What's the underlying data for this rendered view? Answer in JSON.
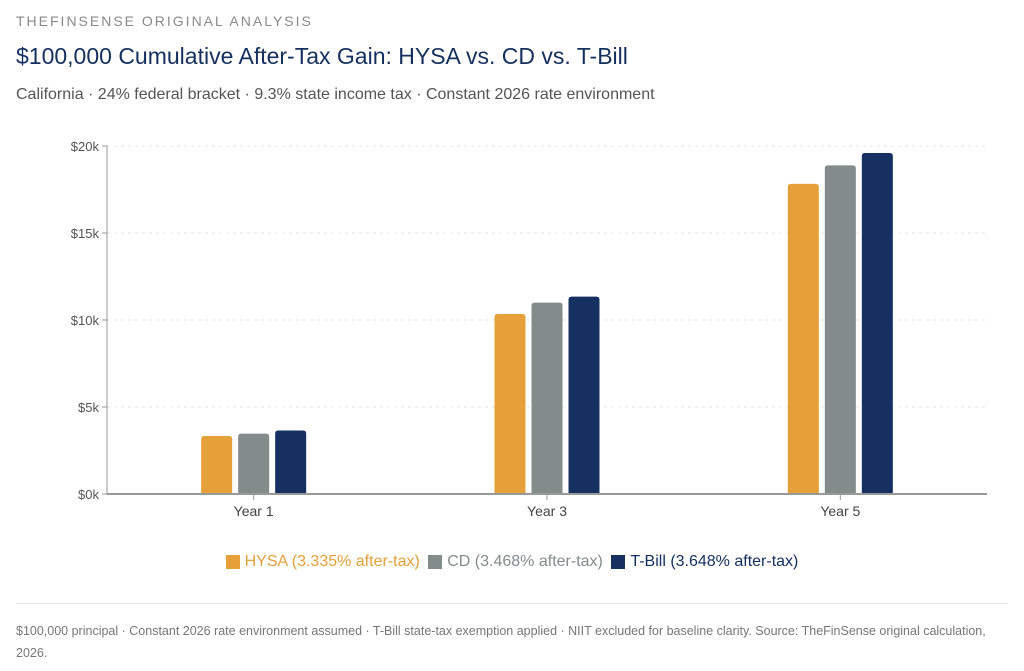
{
  "header": {
    "eyebrow": "THEFINSENSE ORIGINAL ANALYSIS",
    "title": "$100,000 Cumulative After-Tax Gain: HYSA vs. CD vs. T-Bill",
    "subtitle": "California · 24% federal bracket · 9.3% state income tax · Constant 2026 rate environment"
  },
  "chart_data": {
    "type": "bar",
    "title": "$100,000 Cumulative After-Tax Gain: HYSA vs. CD vs. T-Bill",
    "xlabel": "",
    "ylabel": "",
    "categories": [
      "Year 1",
      "Year 3",
      "Year 5"
    ],
    "series": [
      {
        "name": "HYSA (3.335% after-tax)",
        "color": "#e5a03a",
        "values": [
          3335,
          10342,
          17825
        ]
      },
      {
        "name": "CD (3.468% after-tax)",
        "color": "#838c8b",
        "values": [
          3468,
          11000,
          18890
        ]
      },
      {
        "name": "T-Bill (3.648% after-tax)",
        "color": "#163061",
        "values": [
          3648,
          11340,
          19600
        ]
      }
    ],
    "ylim": [
      0,
      20000
    ],
    "yticks": [
      0,
      5000,
      10000,
      15000,
      20000
    ],
    "ytick_labels": [
      "$0k",
      "$5k",
      "$10k",
      "$15k",
      "$20k"
    ],
    "grid": true,
    "legend_position": "bottom"
  },
  "footnote": "$100,000 principal · Constant 2026 rate environment assumed · T-Bill state-tax exemption applied · NIIT excluded for baseline clarity. Source: TheFinSense original calculation, 2026."
}
